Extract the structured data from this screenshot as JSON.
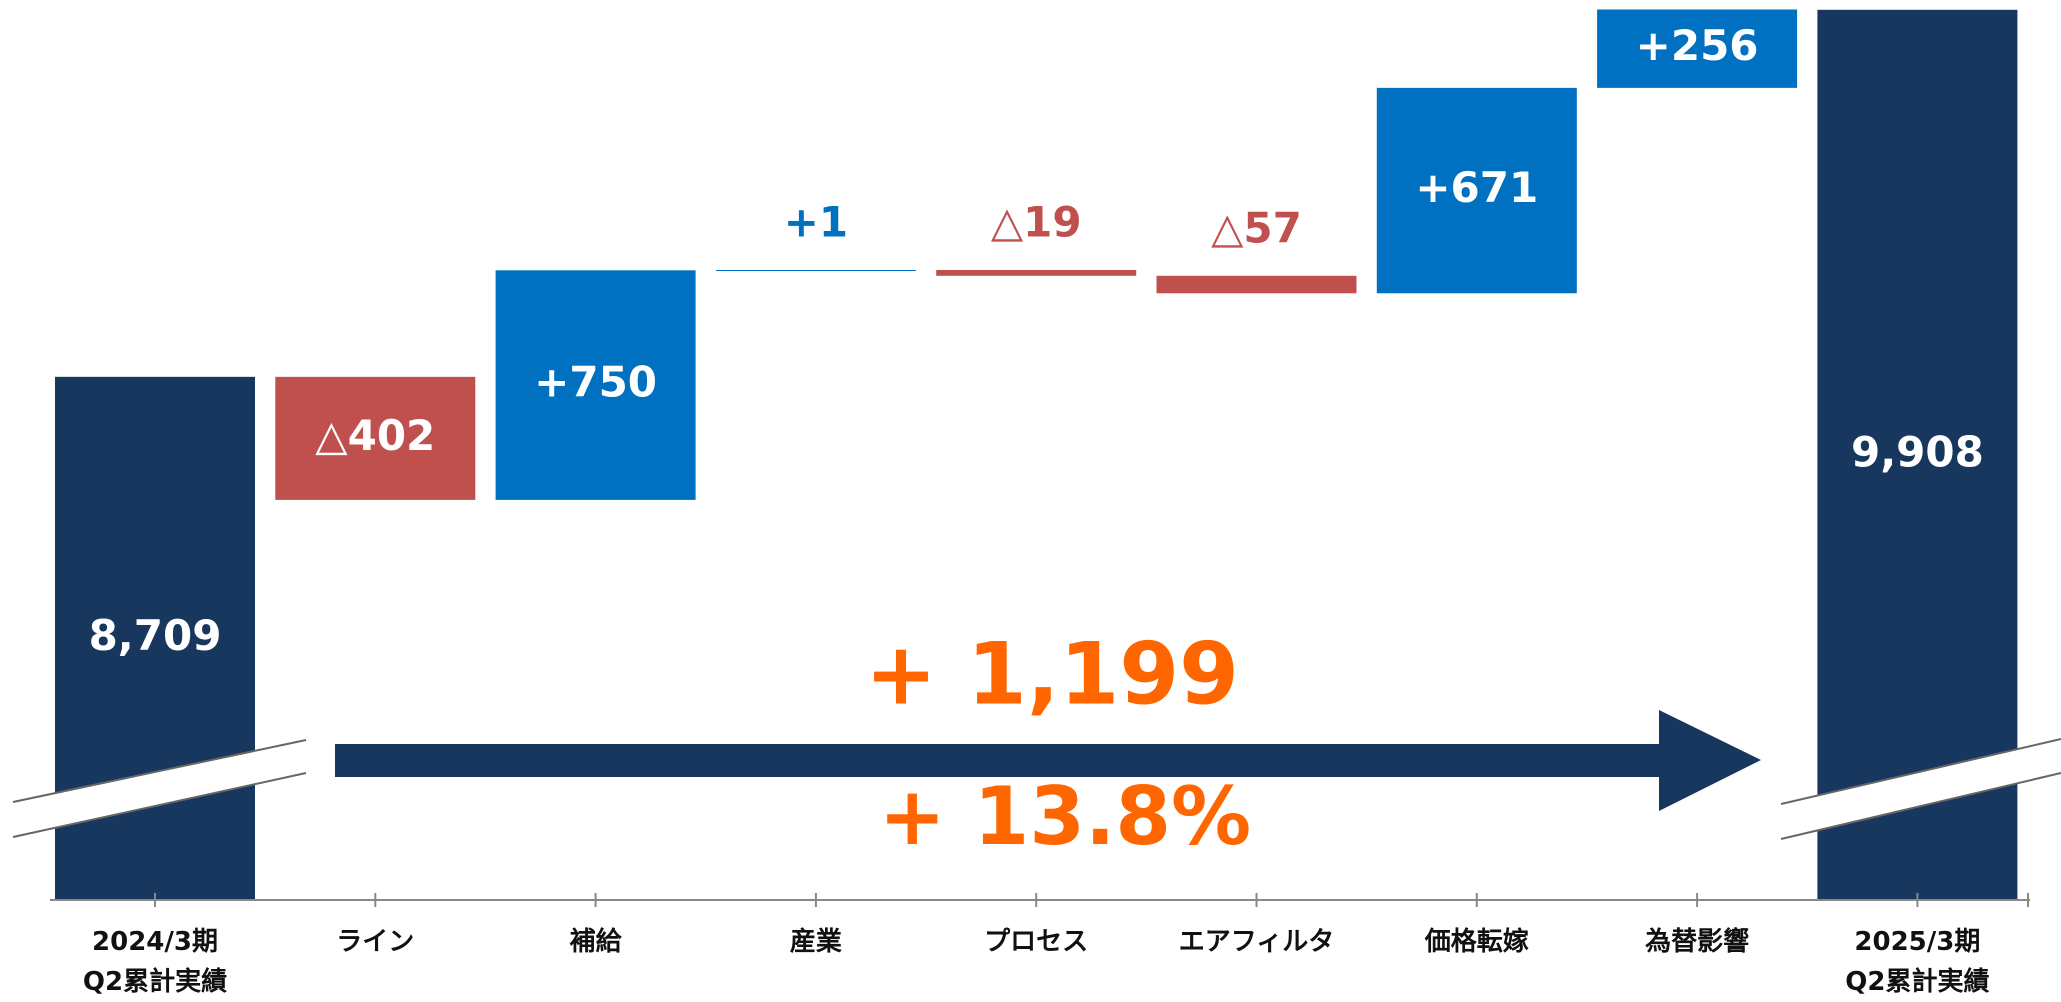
{
  "chart_data": {
    "type": "waterfall",
    "categories": [
      "2024/3期\nQ2累計実績",
      "ライン",
      "補給",
      "産業",
      "プロセス",
      "エアフィルタ",
      "価格転嫁",
      "為替影響",
      "2025/3期\nQ2累計実績"
    ],
    "values": [
      8709,
      -402,
      750,
      1,
      -19,
      -57,
      671,
      256,
      9908
    ],
    "value_labels": [
      "8,709",
      "△402",
      "+750",
      "+1",
      "△19",
      "△57",
      "+671",
      "+256",
      "9,908"
    ],
    "totals": [
      true,
      false,
      false,
      false,
      false,
      false,
      false,
      false,
      true
    ],
    "colors": {
      "total": "#17375e",
      "increase": "#0070c0",
      "decrease": "#c0504d"
    },
    "ylim": [
      7000,
      9940
    ],
    "annotations": [
      "+ 1,199",
      "+ 13.8%"
    ],
    "annotation_color": "#ff6600"
  }
}
